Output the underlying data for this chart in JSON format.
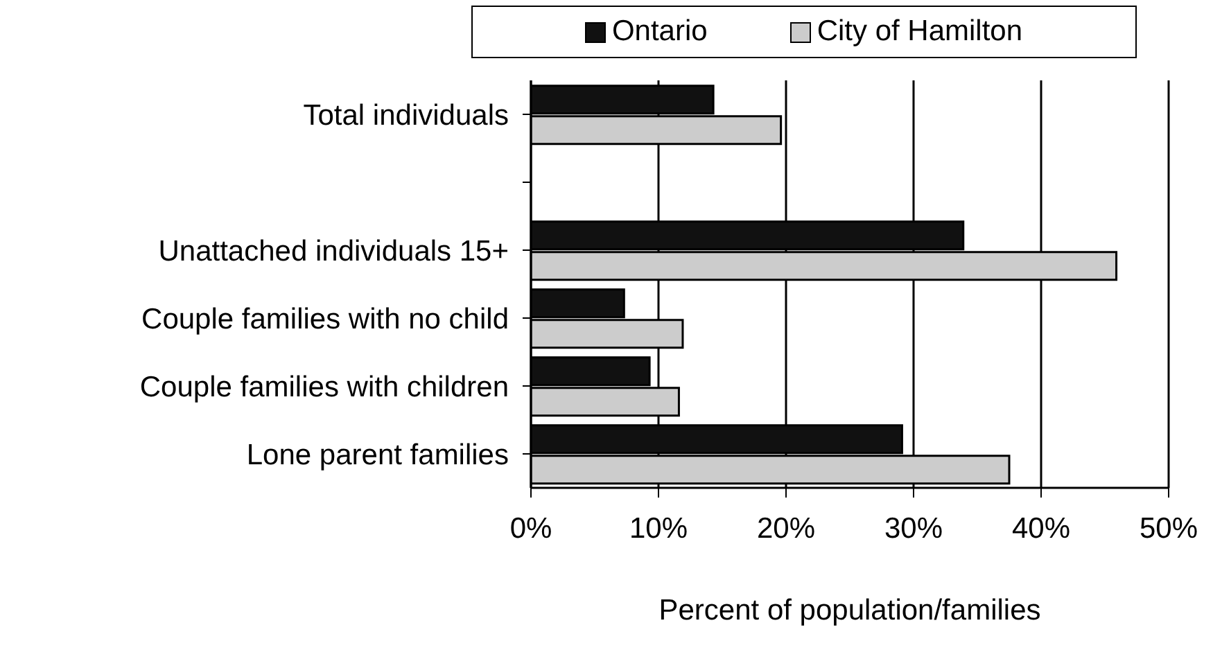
{
  "chart_data": {
    "type": "bar",
    "orientation": "horizontal",
    "categories": [
      "Total individuals",
      null,
      "Unattached individuals 15+",
      "Couple families with no child",
      "Couple families with children",
      "Lone parent families"
    ],
    "series": [
      {
        "name": "Ontario",
        "color": "#111111",
        "values": [
          14.3,
          null,
          33.9,
          7.3,
          9.3,
          29.1
        ]
      },
      {
        "name": "City of Hamilton",
        "color": "#cccccc",
        "values": [
          19.6,
          null,
          45.9,
          11.9,
          11.6,
          37.5
        ]
      }
    ],
    "xlabel": "Percent of population/families",
    "xlim": [
      0,
      50
    ],
    "xticks": [
      {
        "value": 0,
        "label": "0%"
      },
      {
        "value": 10,
        "label": "10%"
      },
      {
        "value": 20,
        "label": "20%"
      },
      {
        "value": 30,
        "label": "30%"
      },
      {
        "value": 40,
        "label": "40%"
      },
      {
        "value": 50,
        "label": "50%"
      }
    ],
    "grid": "x",
    "legend": "top"
  }
}
